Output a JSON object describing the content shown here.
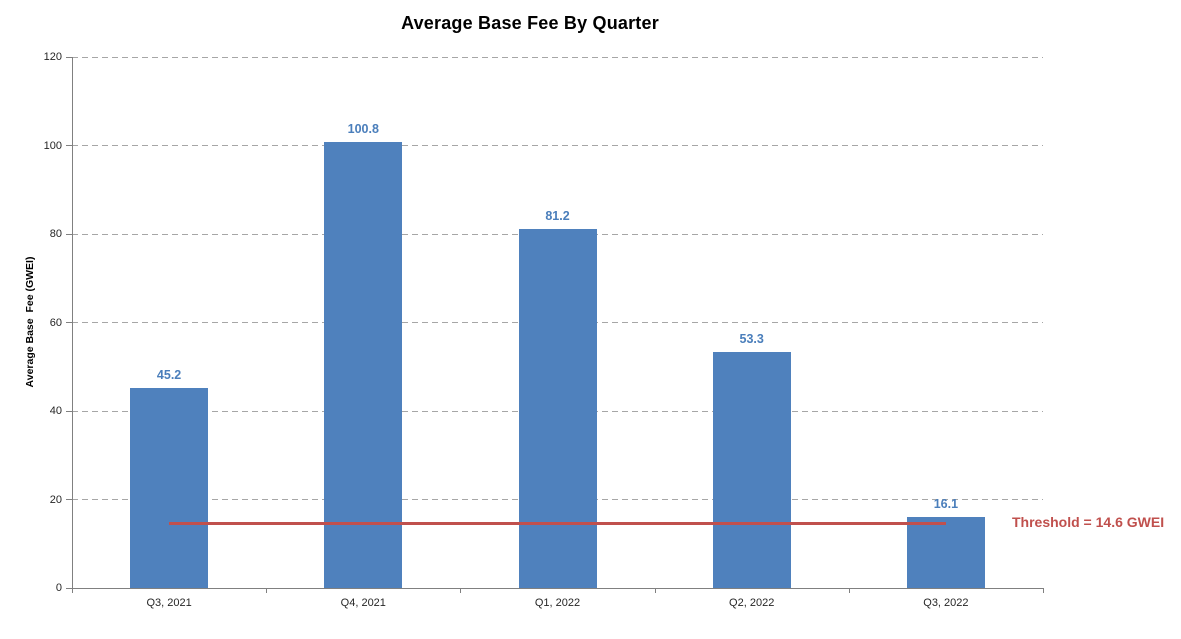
{
  "chart_data": {
    "type": "bar",
    "title": "Average Base Fee By Quarter",
    "xlabel": "",
    "ylabel": "Average Base  Fee (GWEI)",
    "categories": [
      "Q3, 2021",
      "Q4, 2021",
      "Q1, 2022",
      "Q2, 2022",
      "Q3, 2022"
    ],
    "values": [
      45.2,
      100.8,
      81.2,
      53.3,
      16.1
    ],
    "data_labels": [
      "45.2",
      "100.8",
      "81.2",
      "53.3",
      "16.1"
    ],
    "ylim": [
      0,
      120
    ],
    "yticks": [
      0,
      20,
      40,
      60,
      80,
      100,
      120
    ],
    "grid": true,
    "gridline_style": "dashed",
    "legend": "none",
    "threshold": {
      "value": 14.6,
      "label": "Threshold = 14.6 GWEI"
    },
    "colors": {
      "bar": "#4f81bd",
      "data_label": "#4a7ebb",
      "threshold": "#c0504d",
      "gridline": "#a6a6a6",
      "axis": "#808080",
      "tick_label": "#262626",
      "title": "#000000"
    }
  }
}
